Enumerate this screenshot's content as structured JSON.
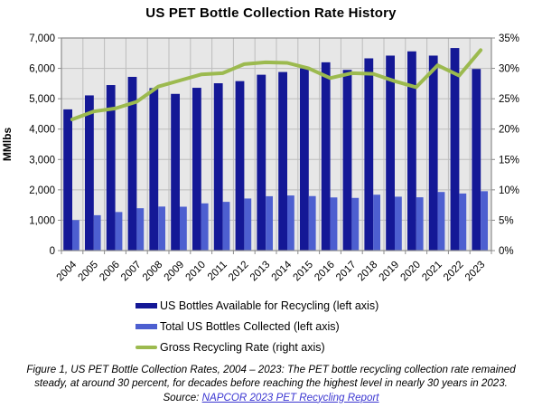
{
  "chart_data": {
    "type": "bar+line",
    "title": "US PET Bottle Collection Rate History",
    "categories": [
      "2004",
      "2005",
      "2006",
      "2007",
      "2008",
      "2009",
      "2010",
      "2011",
      "2012",
      "2013",
      "2014",
      "2015",
      "2016",
      "2017",
      "2018",
      "2019",
      "2020",
      "2021",
      "2022",
      "2023"
    ],
    "series": [
      {
        "name": "US Bottles Available for Recycling (left axis)",
        "type": "bar",
        "axis": "left",
        "color": "#141896",
        "values": [
          4650,
          5110,
          5450,
          5720,
          5350,
          5160,
          5360,
          5510,
          5580,
          5790,
          5880,
          6000,
          6200,
          5950,
          6330,
          6420,
          6560,
          6420,
          6670,
          5980
        ]
      },
      {
        "name": "Total US Bottles Collected (left axis)",
        "type": "bar",
        "axis": "left",
        "color": "#4d5fd0",
        "values": [
          1005,
          1165,
          1270,
          1395,
          1450,
          1445,
          1555,
          1605,
          1715,
          1790,
          1815,
          1795,
          1750,
          1735,
          1840,
          1775,
          1755,
          1930,
          1880,
          1955
        ]
      },
      {
        "name": "Gross Recycling Rate (right axis)",
        "type": "line",
        "axis": "right",
        "color": "#9cba4f",
        "values": [
          21.6,
          22.9,
          23.4,
          24.5,
          27.0,
          28.0,
          29.0,
          29.2,
          30.7,
          31.0,
          30.9,
          30.0,
          28.4,
          29.2,
          29.1,
          27.9,
          26.9,
          30.5,
          28.8,
          33.0
        ]
      }
    ],
    "left_axis": {
      "label": "MMlbs",
      "min": 0,
      "max": 7000,
      "tick_labels": [
        "0",
        "1,000",
        "2,000",
        "3,000",
        "4,000",
        "5,000",
        "6,000",
        "7,000"
      ]
    },
    "right_axis": {
      "min": 0,
      "max": 35,
      "tick_labels": [
        "0%",
        "5%",
        "10%",
        "15%",
        "20%",
        "25%",
        "30%",
        "35%"
      ]
    },
    "grid": true,
    "legend_position": "bottom",
    "plot_bg": "#e7e7e7",
    "grid_color": "#bdbdbd",
    "axis_color": "#8c8c8c"
  },
  "caption": {
    "text": "Figure 1, US PET Bottle Collection Rates, 2004 – 2023: The PET bottle recycling collection rate remained steady, at around 30 percent, for decades before reaching the highest level in nearly 30 years in 2023.",
    "source_label": "Source: ",
    "link_text": "NAPCOR 2023 PET Recycling Report"
  }
}
